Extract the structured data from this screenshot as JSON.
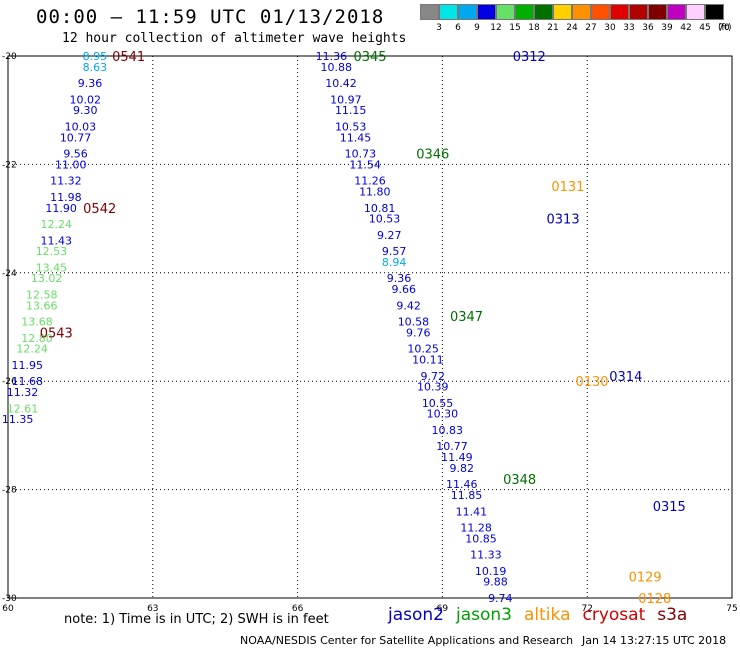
{
  "header": {
    "title": "00:00 – 11:59 UTC 01/13/2018",
    "subtitle": "12 hour collection of altimeter wave heights"
  },
  "colorbar": {
    "unit_label": "(ft)",
    "levels": [
      {
        "label": "3",
        "color": "#888888"
      },
      {
        "label": "6",
        "color": "#00e5e5"
      },
      {
        "label": "9",
        "color": "#00a8f0"
      },
      {
        "label": "12",
        "color": "#0000e0"
      },
      {
        "label": "15",
        "color": "#66e066"
      },
      {
        "label": "18",
        "color": "#00b000"
      },
      {
        "label": "21",
        "color": "#007000"
      },
      {
        "label": "24",
        "color": "#ffd000"
      },
      {
        "label": "27",
        "color": "#ff9000"
      },
      {
        "label": "30",
        "color": "#ff5000"
      },
      {
        "label": "33",
        "color": "#e00000"
      },
      {
        "label": "36",
        "color": "#b00000"
      },
      {
        "label": "39",
        "color": "#800000"
      },
      {
        "label": "42",
        "color": "#c000c0"
      },
      {
        "label": "45",
        "color": "#ffd0ff"
      },
      {
        "label": "70",
        "color": "#000000"
      }
    ]
  },
  "chart_data": {
    "type": "scatter",
    "xlim": [
      60,
      75
    ],
    "ylim": [
      -30,
      -20
    ],
    "x_ticks": [
      "60",
      "63",
      "66",
      "69",
      "72",
      "75"
    ],
    "y_ticks": [
      "-20",
      "-22",
      "-24",
      "-26",
      "-28",
      "-30"
    ],
    "grid": true,
    "tracks": [
      {
        "satellite": "jason2",
        "points": [
          [
            61.8,
            -20.0,
            8.95
          ],
          [
            61.8,
            -20.2,
            8.63
          ],
          [
            61.7,
            -20.5,
            9.36
          ],
          [
            61.6,
            -20.8,
            10.02
          ],
          [
            61.6,
            -21.0,
            9.3
          ],
          [
            61.5,
            -21.3,
            10.03
          ],
          [
            61.4,
            -21.5,
            10.77
          ],
          [
            61.4,
            -21.8,
            9.56
          ],
          [
            61.3,
            -22.0,
            11.0
          ],
          [
            61.2,
            -22.3,
            11.32
          ],
          [
            61.2,
            -22.6,
            11.98
          ],
          [
            61.1,
            -22.8,
            11.9
          ],
          [
            61.0,
            -23.1,
            12.24
          ],
          [
            61.0,
            -23.4,
            11.43
          ],
          [
            60.9,
            -23.6,
            12.53
          ],
          [
            60.9,
            -23.9,
            13.45
          ],
          [
            60.8,
            -24.1,
            13.02
          ],
          [
            60.7,
            -24.4,
            12.58
          ],
          [
            60.7,
            -24.6,
            13.66
          ],
          [
            60.6,
            -24.9,
            13.68
          ],
          [
            60.6,
            -25.2,
            12.8
          ],
          [
            60.5,
            -25.4,
            12.24
          ],
          [
            60.4,
            -25.7,
            11.95
          ],
          [
            60.4,
            -26.0,
            11.68
          ],
          [
            60.3,
            -26.2,
            11.32
          ],
          [
            60.3,
            -26.5,
            12.61
          ],
          [
            60.2,
            -26.7,
            11.35
          ]
        ]
      },
      {
        "satellite": "jason3",
        "points": [
          [
            66.7,
            -20.0,
            11.36
          ],
          [
            66.8,
            -20.2,
            10.88
          ],
          [
            66.9,
            -20.5,
            10.42
          ],
          [
            67.0,
            -20.8,
            10.97
          ],
          [
            67.1,
            -21.0,
            11.15
          ],
          [
            67.1,
            -21.3,
            10.53
          ],
          [
            67.2,
            -21.5,
            11.45
          ],
          [
            67.3,
            -21.8,
            10.73
          ],
          [
            67.4,
            -22.0,
            11.54
          ],
          [
            67.5,
            -22.3,
            11.26
          ],
          [
            67.6,
            -22.5,
            11.8
          ],
          [
            67.7,
            -22.8,
            10.81
          ],
          [
            67.8,
            -23.0,
            10.53
          ],
          [
            67.9,
            -23.3,
            9.27
          ],
          [
            68.0,
            -23.6,
            9.57
          ],
          [
            68.0,
            -23.8,
            8.94
          ],
          [
            68.1,
            -24.1,
            9.36
          ],
          [
            68.2,
            -24.3,
            9.66
          ],
          [
            68.3,
            -24.6,
            9.42
          ],
          [
            68.4,
            -24.9,
            10.58
          ],
          [
            68.5,
            -25.1,
            9.76
          ],
          [
            68.6,
            -25.4,
            10.25
          ],
          [
            68.7,
            -25.6,
            10.11
          ],
          [
            68.8,
            -25.9,
            9.72
          ],
          [
            68.8,
            -26.1,
            10.39
          ],
          [
            68.9,
            -26.4,
            10.55
          ],
          [
            69.0,
            -26.6,
            10.3
          ],
          [
            69.1,
            -26.9,
            10.83
          ],
          [
            69.2,
            -27.2,
            10.77
          ],
          [
            69.3,
            -27.4,
            11.49
          ],
          [
            69.4,
            -27.6,
            9.82
          ],
          [
            69.4,
            -27.9,
            11.46
          ],
          [
            69.5,
            -28.1,
            11.85
          ],
          [
            69.6,
            -28.4,
            11.41
          ],
          [
            69.7,
            -28.7,
            11.28
          ],
          [
            69.8,
            -28.9,
            10.85
          ],
          [
            69.9,
            -29.2,
            11.33
          ],
          [
            70.0,
            -29.5,
            10.19
          ],
          [
            70.1,
            -29.7,
            9.88
          ],
          [
            70.2,
            -30.0,
            9.74
          ]
        ]
      }
    ],
    "pass_labels": [
      {
        "label": "0541",
        "x": 62.5,
        "y": -20.0,
        "color": "#800000"
      },
      {
        "label": "0542",
        "x": 61.9,
        "y": -22.8,
        "color": "#800000"
      },
      {
        "label": "0543",
        "x": 61.0,
        "y": -25.1,
        "color": "#800000"
      },
      {
        "label": "0345",
        "x": 67.5,
        "y": -20.0,
        "color": "#007000"
      },
      {
        "label": "0346",
        "x": 68.8,
        "y": -21.8,
        "color": "#007000"
      },
      {
        "label": "0347",
        "x": 69.5,
        "y": -24.8,
        "color": "#007000"
      },
      {
        "label": "0348",
        "x": 70.6,
        "y": -27.8,
        "color": "#007000"
      },
      {
        "label": "0312",
        "x": 70.8,
        "y": -20.0,
        "color": "#0000c0"
      },
      {
        "label": "0313",
        "x": 71.5,
        "y": -23.0,
        "color": "#0000c0"
      },
      {
        "label": "0314",
        "x": 72.8,
        "y": -25.9,
        "color": "#0000c0"
      },
      {
        "label": "0315",
        "x": 73.7,
        "y": -28.3,
        "color": "#0000c0"
      },
      {
        "label": "0131",
        "x": 71.6,
        "y": -22.4,
        "color": "#ff9000"
      },
      {
        "label": "0130",
        "x": 72.1,
        "y": -26.0,
        "color": "#ff9000"
      },
      {
        "label": "0129",
        "x": 73.2,
        "y": -29.6,
        "color": "#ff9000"
      },
      {
        "label": "0128",
        "x": 73.4,
        "y": -30.0,
        "color": "#ff9000"
      }
    ],
    "legend": [
      {
        "name": "jason2",
        "color": "#0000c0"
      },
      {
        "name": "jason3",
        "color": "#00a000"
      },
      {
        "name": "altika",
        "color": "#ff9000"
      },
      {
        "name": "cryosat",
        "color": "#d00000"
      },
      {
        "name": "s3a",
        "color": "#800000"
      }
    ]
  },
  "footer": {
    "note": "note:  1) Time is in UTC;  2) SWH is in feet",
    "credit": "NOAA/NESDIS Center for Satellite Applications and Research",
    "timestamp": "Jan 14 13:27:15 UTC 2018"
  }
}
